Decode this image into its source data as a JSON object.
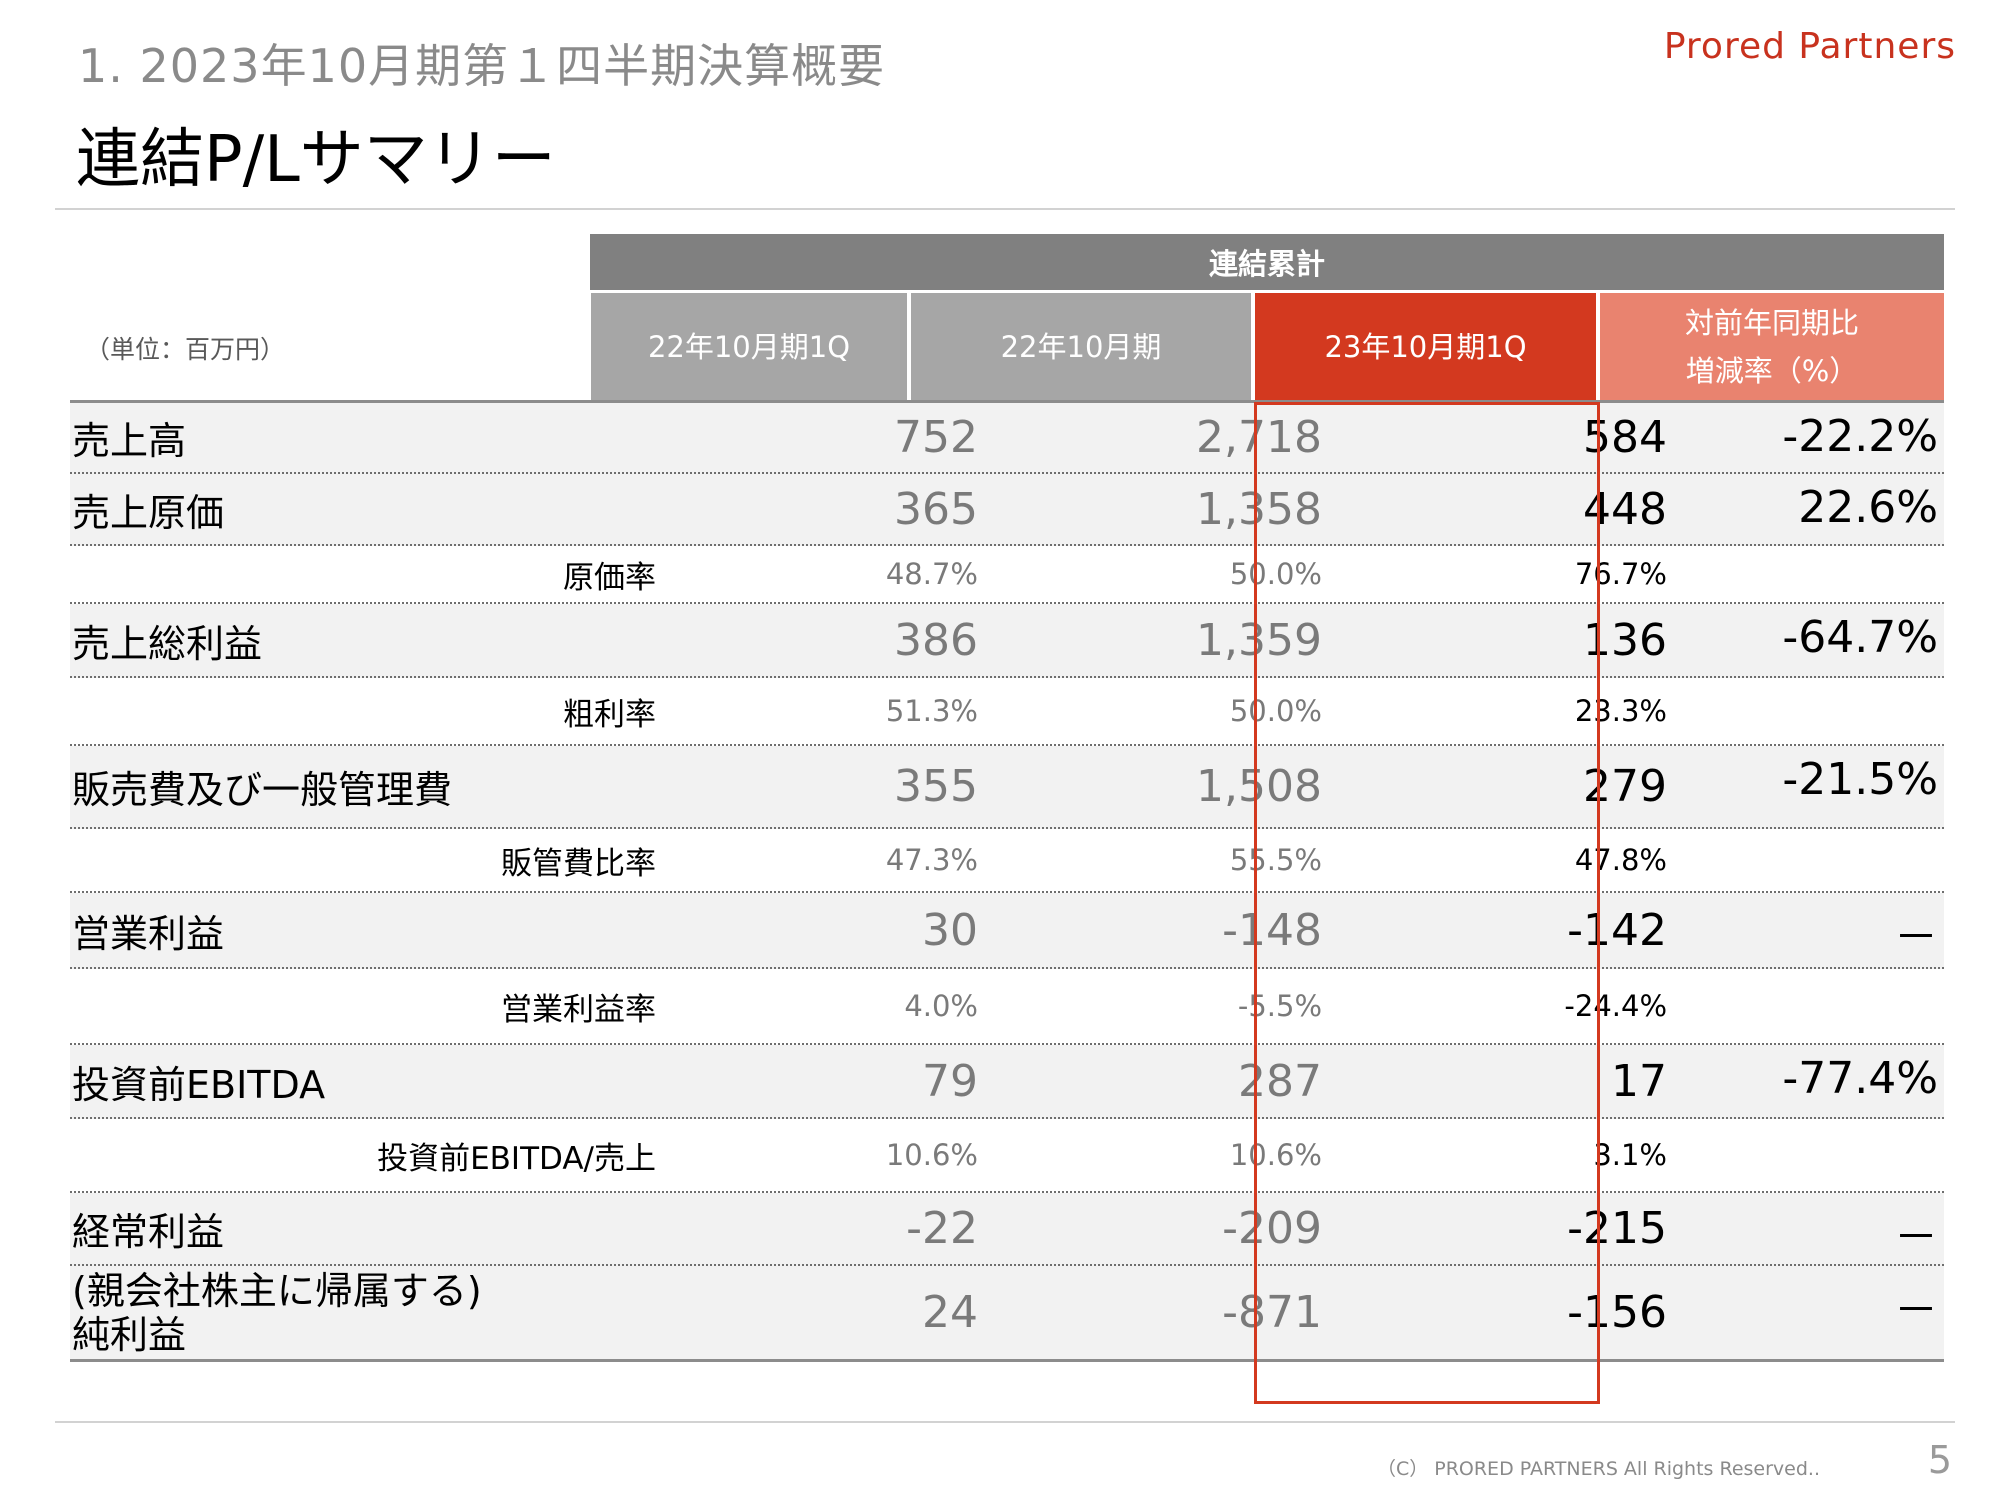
{
  "header": {
    "subtitle": "1.  2023年10月期第１四半期決算概要",
    "title": "連結P/Lサマリー",
    "brand": "Prored Partners"
  },
  "table": {
    "group_header": "連結累計",
    "unit": "（単位：百万円）",
    "columns": [
      "22年10月期1Q",
      "22年10月期",
      "23年10月期1Q",
      "対前年同期比\n増減率（%）"
    ],
    "rows": [
      {
        "label": "売上高",
        "values": [
          "752",
          "2,718",
          "584",
          "-22.2%"
        ]
      },
      {
        "label": "売上原価",
        "values": [
          "365",
          "1,358",
          "448",
          "22.6%"
        ]
      },
      {
        "label": "原価率",
        "values": [
          "48.7%",
          "50.0%",
          "76.7%"
        ]
      },
      {
        "label": "売上総利益",
        "values": [
          "386",
          "1,359",
          "136",
          "-64.7%"
        ]
      },
      {
        "label": "粗利率",
        "values": [
          "51.3%",
          "50.0%",
          "23.3%"
        ]
      },
      {
        "label": "販売費及び一般管理費",
        "values": [
          "355",
          "1,508",
          "279",
          "-21.5%"
        ]
      },
      {
        "label": "販管費比率",
        "values": [
          "47.3%",
          "55.5%",
          "47.8%"
        ]
      },
      {
        "label": "営業利益",
        "values": [
          "30",
          "-148",
          "-142",
          "－"
        ]
      },
      {
        "label": "営業利益率",
        "values": [
          "4.0%",
          "-5.5%",
          "-24.4%"
        ]
      },
      {
        "label": "投資前EBITDA",
        "values": [
          "79",
          "287",
          "17",
          "-77.4%"
        ]
      },
      {
        "label": "投資前EBITDA/売上",
        "values": [
          "10.6%",
          "10.6%",
          "3.1%"
        ]
      },
      {
        "label": "経常利益",
        "values": [
          "-22",
          "-209",
          "-215",
          "－"
        ]
      },
      {
        "label": "(親会社株主に帰属する)\n純利益",
        "values": [
          "24",
          "-871",
          "-156",
          "－"
        ]
      }
    ]
  },
  "footer": {
    "copyright": "（C） PRORED PARTNERS All Rights Reserved..",
    "page": "5"
  },
  "colors": {
    "accent_red": "#d3391f",
    "light_red": "#e9836f",
    "header_gray": "#808080",
    "column_gray": "#a6a6a6"
  }
}
